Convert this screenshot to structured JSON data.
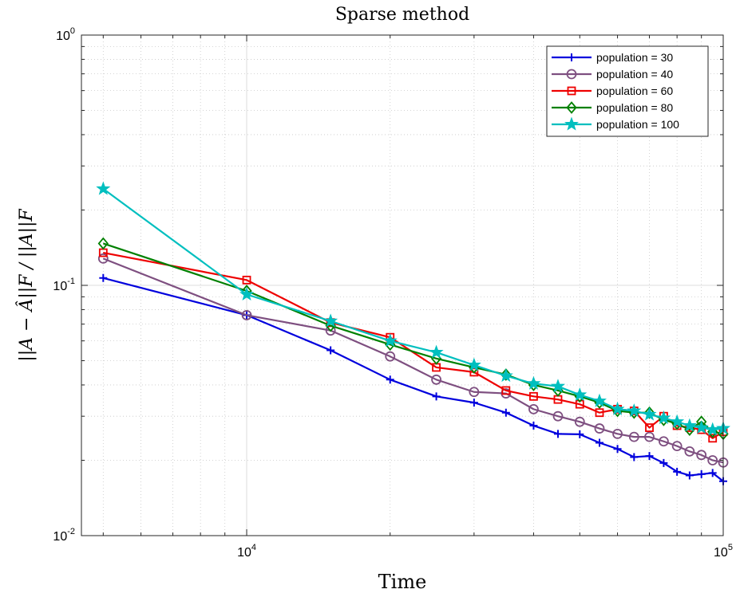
{
  "chart_data": {
    "type": "line",
    "title": "Sparse method",
    "xlabel": "Time",
    "ylabel": "||A − Â||F / ||A||F",
    "x_scale": "log",
    "y_scale": "log",
    "xlim": [
      4500,
      100000
    ],
    "ylim": [
      0.01,
      1
    ],
    "grid": true,
    "legend_position": "top-right",
    "x_ticks": [
      {
        "value": 10000,
        "base": "10",
        "exp": "4"
      },
      {
        "value": 100000,
        "base": "10",
        "exp": "5"
      }
    ],
    "y_ticks": [
      {
        "value": 0.01,
        "base": "10",
        "exp": "-2"
      },
      {
        "value": 0.1,
        "base": "10",
        "exp": "-1"
      },
      {
        "value": 1,
        "base": "10",
        "exp": "0"
      }
    ],
    "series": [
      {
        "name": "population = 30",
        "color": "#0000dd",
        "marker": "plus",
        "x": [
          5000,
          10000,
          15000,
          20000,
          25000,
          30000,
          35000,
          40000,
          45000,
          50000,
          55000,
          60000,
          65000,
          70000,
          75000,
          80000,
          85000,
          90000,
          95000,
          100000
        ],
        "y": [
          0.107,
          0.076,
          0.055,
          0.042,
          0.036,
          0.034,
          0.031,
          0.0275,
          0.0255,
          0.0254,
          0.0235,
          0.0222,
          0.0206,
          0.0208,
          0.0195,
          0.018,
          0.0174,
          0.0176,
          0.0178,
          0.0165
        ]
      },
      {
        "name": "population = 40",
        "color": "#7e4f80",
        "marker": "circle",
        "x": [
          5000,
          10000,
          15000,
          20000,
          25000,
          30000,
          35000,
          40000,
          45000,
          50000,
          55000,
          60000,
          65000,
          70000,
          75000,
          80000,
          85000,
          90000,
          95000,
          100000
        ],
        "y": [
          0.128,
          0.076,
          0.066,
          0.052,
          0.042,
          0.0375,
          0.037,
          0.032,
          0.03,
          0.0285,
          0.0268,
          0.0255,
          0.0248,
          0.0248,
          0.0238,
          0.0228,
          0.0217,
          0.021,
          0.02,
          0.0196
        ]
      },
      {
        "name": "population = 60",
        "color": "#ee0000",
        "marker": "square",
        "x": [
          5000,
          10000,
          15000,
          20000,
          25000,
          30000,
          35000,
          40000,
          45000,
          50000,
          55000,
          60000,
          65000,
          70000,
          75000,
          80000,
          85000,
          90000,
          95000,
          100000
        ],
        "y": [
          0.135,
          0.105,
          0.071,
          0.062,
          0.047,
          0.045,
          0.038,
          0.036,
          0.035,
          0.0335,
          0.031,
          0.032,
          0.0315,
          0.027,
          0.03,
          0.0275,
          0.027,
          0.0265,
          0.0245,
          0.026
        ]
      },
      {
        "name": "population = 80",
        "color": "#008000",
        "marker": "diamond",
        "x": [
          5000,
          10000,
          15000,
          20000,
          25000,
          30000,
          35000,
          40000,
          45000,
          50000,
          55000,
          60000,
          65000,
          70000,
          75000,
          80000,
          85000,
          90000,
          95000,
          100000
        ],
        "y": [
          0.147,
          0.095,
          0.069,
          0.058,
          0.051,
          0.047,
          0.044,
          0.04,
          0.038,
          0.036,
          0.034,
          0.0315,
          0.031,
          0.031,
          0.029,
          0.028,
          0.0265,
          0.0285,
          0.026,
          0.0255
        ]
      },
      {
        "name": "population = 100",
        "color": "#00bfbf",
        "marker": "star",
        "x": [
          5000,
          10000,
          15000,
          20000,
          25000,
          30000,
          35000,
          40000,
          45000,
          50000,
          55000,
          60000,
          65000,
          70000,
          75000,
          80000,
          85000,
          90000,
          95000,
          100000
        ],
        "y": [
          0.243,
          0.092,
          0.072,
          0.06,
          0.054,
          0.048,
          0.0435,
          0.0405,
          0.0395,
          0.0365,
          0.0345,
          0.032,
          0.0315,
          0.0305,
          0.0295,
          0.0285,
          0.0275,
          0.027,
          0.0265,
          0.0268
        ]
      }
    ]
  }
}
